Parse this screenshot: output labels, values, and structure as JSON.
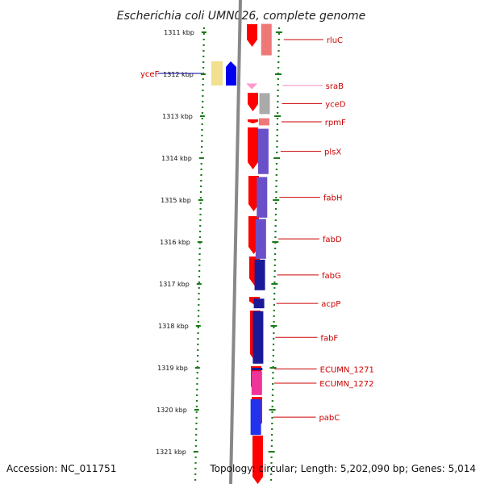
{
  "title": "Escherichia coli UMN026, complete genome",
  "accession": "Accession: NC_011751",
  "summary": "Topology: circular; Length: 5,202,090 bp; Genes: 5,014",
  "colors": {
    "gene_label": "#cc0000",
    "left_gene_label": "#000099",
    "srab_label": "#ee88bb",
    "tick_dots": "#1a7a1a",
    "backbone": "#888888",
    "forward_strand": "#ff0000"
  },
  "scale": {
    "ticks": [
      {
        "kbp": 1311,
        "label": "1311 kbp"
      },
      {
        "kbp": 1312,
        "label": "1312 kbp"
      },
      {
        "kbp": 1313,
        "label": "1313 kbp"
      },
      {
        "kbp": 1314,
        "label": "1314 kbp"
      },
      {
        "kbp": 1315,
        "label": "1315 kbp"
      },
      {
        "kbp": 1316,
        "label": "1316 kbp"
      },
      {
        "kbp": 1317,
        "label": "1317 kbp"
      },
      {
        "kbp": 1318,
        "label": "1318 kbp"
      },
      {
        "kbp": 1319,
        "label": "1319 kbp"
      },
      {
        "kbp": 1320,
        "label": "1320 kbp"
      },
      {
        "kbp": 1321,
        "label": "1321 kbp"
      }
    ]
  },
  "right_genes": [
    {
      "name": "rluC",
      "start_kbp": 1310.8,
      "end_kbp": 1311.55,
      "color": "#ee7777"
    },
    {
      "name": "sraB",
      "start_kbp": 1312.22,
      "end_kbp": 1312.32,
      "color": "#ff99cc",
      "label_color": "#ee88bb"
    },
    {
      "name": "yceD",
      "start_kbp": 1312.45,
      "end_kbp": 1312.95,
      "color": "#aaaaaa"
    },
    {
      "name": "rpmF",
      "start_kbp": 1313.05,
      "end_kbp": 1313.22,
      "color": "#ee7777"
    },
    {
      "name": "plsX",
      "start_kbp": 1313.3,
      "end_kbp": 1314.38,
      "color": "#6a50c8"
    },
    {
      "name": "fabH",
      "start_kbp": 1314.45,
      "end_kbp": 1315.42,
      "color": "#6a50c8"
    },
    {
      "name": "fabD",
      "start_kbp": 1315.45,
      "end_kbp": 1316.4,
      "color": "#6a50c8"
    },
    {
      "name": "fabG",
      "start_kbp": 1316.42,
      "end_kbp": 1317.15,
      "color": "#1a1a99"
    },
    {
      "name": "acpP",
      "start_kbp": 1317.35,
      "end_kbp": 1317.58,
      "color": "#1a1a99"
    },
    {
      "name": "fabF",
      "start_kbp": 1317.65,
      "end_kbp": 1318.9,
      "color": "#1a1a99"
    },
    {
      "name": "ECUMN_1271",
      "start_kbp": 1319.0,
      "end_kbp": 1319.05,
      "color": "#1a1a99"
    },
    {
      "name": "ECUMN_1272",
      "start_kbp": 1319.08,
      "end_kbp": 1319.65,
      "color": "#ee3399"
    },
    {
      "name": "pabC",
      "start_kbp": 1319.75,
      "end_kbp": 1320.6,
      "color": "#2233ee"
    }
  ],
  "left_genes": [
    {
      "name": "yceF",
      "start_kbp": 1311.7,
      "end_kbp": 1312.3,
      "color": "#f0e090"
    }
  ],
  "icons": [
    "gene-arrow-icon"
  ]
}
